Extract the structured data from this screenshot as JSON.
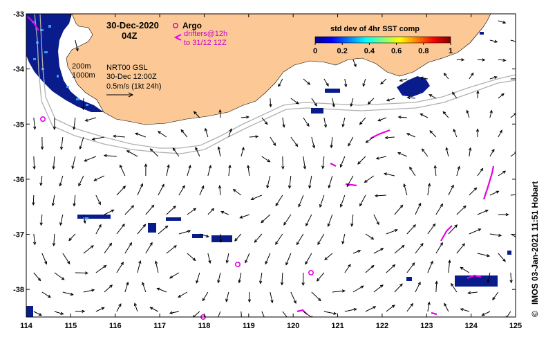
{
  "map": {
    "date_title": "30-Dec-2020",
    "time_title": "04Z",
    "legend": {
      "argo_label": "Argo",
      "drifter_line1": "drifters@12h",
      "drifter_line2": "to 31/12 12Z",
      "argo_symbol": "circle-dot-icon",
      "drifter_symbol": "chevron-left-icon",
      "argo_color": "#e600e6"
    },
    "isobaths": [
      "200m",
      "1000m"
    ],
    "current_info": {
      "line1": "NRT00 GSL",
      "line2": "30-Dec 12:00Z",
      "line3": "0.5m/s (1kt 24h)"
    },
    "colorbar": {
      "title": "std dev of 4hr SST comp",
      "ticks": [
        "0",
        "0.2",
        "0.4",
        "0.6",
        "0.8",
        "1"
      ],
      "colormap": "jet"
    },
    "x_axis": {
      "ticks": [
        114,
        115,
        116,
        117,
        118,
        119,
        120,
        121,
        122,
        123,
        124,
        125
      ],
      "labels": [
        "114",
        "115",
        "116",
        "117",
        "118",
        "119",
        "120",
        "121",
        "122",
        "123",
        "124",
        "125"
      ]
    },
    "y_axis": {
      "ticks": [
        -33,
        -34,
        -35,
        -36,
        -37,
        -38
      ],
      "labels": [
        "-33",
        "-34",
        "-35",
        "-36",
        "-37",
        "-38"
      ]
    },
    "extent": {
      "lon": [
        114,
        125
      ],
      "lat": [
        -38.5,
        -33
      ]
    },
    "credit": "IMOS 03-Jan-2021 11:51 Hobart",
    "copyright_symbol": "©",
    "colors": {
      "land": "#fcc996",
      "sst_patch": "#0a1c8c",
      "isobath": "#b0b0b0",
      "argo": "#e600e6",
      "drifter": "#e600e6"
    }
  }
}
